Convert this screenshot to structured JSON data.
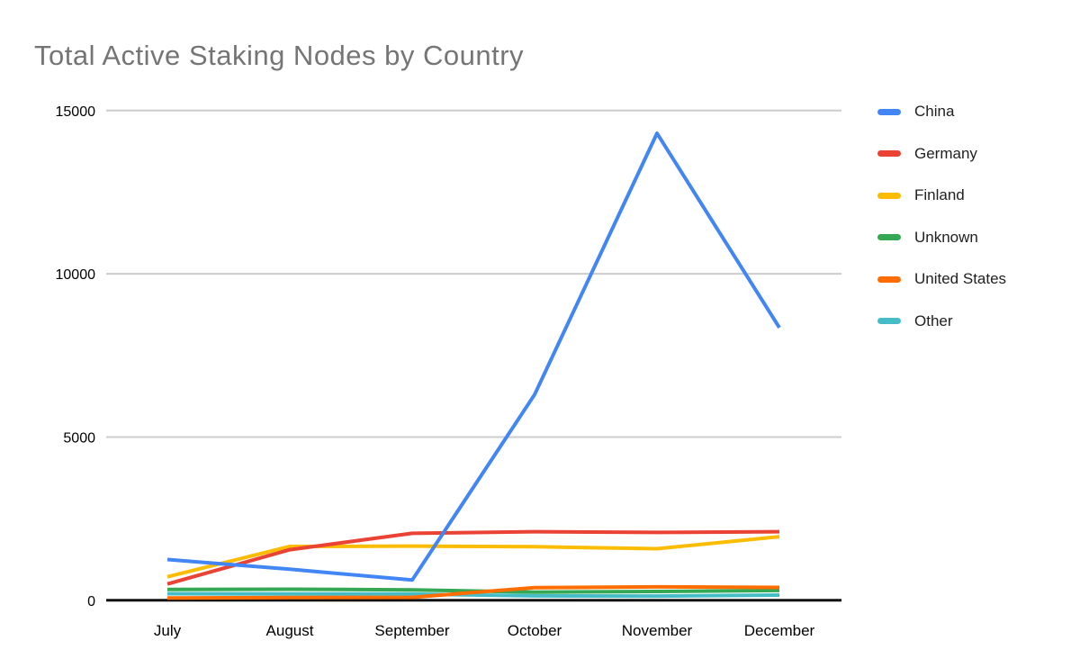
{
  "title": "Total Active Staking Nodes by Country",
  "colors": {
    "background": "#ffffff",
    "title_text": "#757575",
    "axis_text": "#000000",
    "legend_text": "#212121",
    "gridline": "#cccccc",
    "axis_line": "#111111"
  },
  "chart_data": {
    "type": "line",
    "title": "Total Active Staking Nodes by Country",
    "categories": [
      "July",
      "August",
      "September",
      "October",
      "November",
      "December"
    ],
    "series": [
      {
        "name": "China",
        "color": "#4285F4",
        "values": [
          1250,
          950,
          620,
          6300,
          14300,
          8350
        ]
      },
      {
        "name": "Germany",
        "color": "#EA4335",
        "values": [
          500,
          1550,
          2050,
          2100,
          2080,
          2100
        ]
      },
      {
        "name": "Finland",
        "color": "#FBBC04",
        "values": [
          720,
          1650,
          1660,
          1640,
          1580,
          1950
        ]
      },
      {
        "name": "Unknown",
        "color": "#34A853",
        "values": [
          330,
          340,
          320,
          250,
          270,
          300
        ]
      },
      {
        "name": "United States",
        "color": "#FF6D01",
        "values": [
          70,
          85,
          90,
          390,
          410,
          395
        ]
      },
      {
        "name": "Other",
        "color": "#46BDC6",
        "values": [
          200,
          195,
          190,
          135,
          130,
          160
        ]
      }
    ],
    "xlabel": "",
    "ylabel": "",
    "ylim": [
      0,
      15000
    ],
    "yticks": [
      0,
      5000,
      10000,
      15000
    ],
    "y_tick_labels": [
      "0",
      "5000",
      "10000",
      "15000"
    ],
    "grid": true,
    "legend_position": "right"
  }
}
